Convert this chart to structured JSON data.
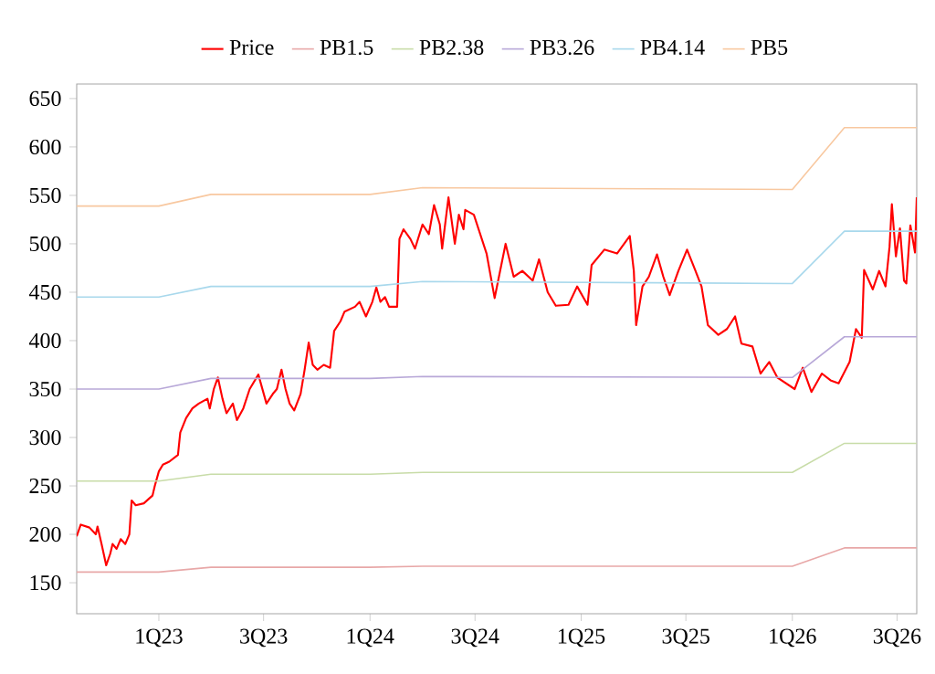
{
  "chart_data": {
    "type": "line",
    "legend": "top",
    "xlim": [
      "2022-08-12",
      "2026-08-04"
    ],
    "ylim": [
      118,
      665
    ],
    "xticks": [
      {
        "value": "2023-01-01",
        "label": "1Q23"
      },
      {
        "value": "2023-07-01",
        "label": "3Q23"
      },
      {
        "value": "2024-01-01",
        "label": "1Q24"
      },
      {
        "value": "2024-07-01",
        "label": "3Q24"
      },
      {
        "value": "2025-01-01",
        "label": "1Q25"
      },
      {
        "value": "2025-07-01",
        "label": "3Q25"
      },
      {
        "value": "2026-01-01",
        "label": "1Q26"
      },
      {
        "value": "2026-07-01",
        "label": "3Q26"
      }
    ],
    "yticks": [
      150,
      200,
      250,
      300,
      350,
      400,
      450,
      500,
      550,
      600,
      650
    ],
    "series": [
      {
        "name": "Price",
        "color": "#ff0000",
        "x": [
          "2022-08-12",
          "2022-08-19",
          "2022-09-03",
          "2022-09-14",
          "2022-09-17",
          "2022-09-24",
          "2022-10-02",
          "2022-10-09",
          "2022-10-13",
          "2022-10-20",
          "2022-10-27",
          "2022-11-04",
          "2022-11-11",
          "2022-11-15",
          "2022-11-22",
          "2022-12-06",
          "2022-12-21",
          "2022-12-25",
          "2023-01-01",
          "2023-01-08",
          "2023-01-19",
          "2023-02-03",
          "2023-02-07",
          "2023-02-17",
          "2023-02-28",
          "2023-03-11",
          "2023-03-26",
          "2023-03-30",
          "2023-04-06",
          "2023-04-13",
          "2023-04-21",
          "2023-04-28",
          "2023-05-09",
          "2023-05-16",
          "2023-05-27",
          "2023-06-07",
          "2023-06-22",
          "2023-06-29",
          "2023-07-06",
          "2023-07-17",
          "2023-07-24",
          "2023-08-01",
          "2023-08-08",
          "2023-08-15",
          "2023-08-23",
          "2023-09-03",
          "2023-09-10",
          "2023-09-17",
          "2023-09-24",
          "2023-10-02",
          "2023-10-13",
          "2023-10-24",
          "2023-10-31",
          "2023-11-11",
          "2023-11-18",
          "2023-12-06",
          "2023-12-14",
          "2023-12-25",
          "2024-01-05",
          "2024-01-12",
          "2024-01-19",
          "2024-01-27",
          "2024-02-03",
          "2024-02-17",
          "2024-02-21",
          "2024-02-28",
          "2024-03-11",
          "2024-03-19",
          "2024-04-01",
          "2024-04-12",
          "2024-04-21",
          "2024-05-01",
          "2024-05-05",
          "2024-05-16",
          "2024-05-27",
          "2024-06-03",
          "2024-06-11",
          "2024-06-14",
          "2024-06-29",
          "2024-07-21",
          "2024-08-04",
          "2024-08-23",
          "2024-09-06",
          "2024-09-21",
          "2024-10-09",
          "2024-10-20",
          "2024-11-04",
          "2024-11-18",
          "2024-12-10",
          "2024-12-25",
          "2025-01-12",
          "2025-01-19",
          "2025-02-10",
          "2025-03-04",
          "2025-03-26",
          "2025-04-02",
          "2025-04-06",
          "2025-04-17",
          "2025-04-28",
          "2025-05-12",
          "2025-05-23",
          "2025-06-03",
          "2025-06-18",
          "2025-07-03",
          "2025-07-17",
          "2025-07-28",
          "2025-08-08",
          "2025-08-26",
          "2025-09-10",
          "2025-09-24",
          "2025-10-05",
          "2025-10-24",
          "2025-11-07",
          "2025-11-22",
          "2025-12-06",
          "2026-01-05",
          "2026-01-19",
          "2026-02-03",
          "2026-02-21",
          "2026-03-08",
          "2026-03-22",
          "2026-04-10",
          "2026-04-21",
          "2026-05-01",
          "2026-05-05",
          "2026-05-20",
          "2026-05-31",
          "2026-06-11",
          "2026-06-18",
          "2026-06-22",
          "2026-06-29",
          "2026-07-06",
          "2026-07-13",
          "2026-07-17",
          "2026-07-24",
          "2026-08-01",
          "2026-08-04"
        ],
        "values": [
          198,
          210,
          207,
          200,
          208,
          190,
          168,
          180,
          190,
          185,
          195,
          190,
          200,
          235,
          230,
          232,
          240,
          250,
          265,
          272,
          275,
          282,
          305,
          320,
          330,
          335,
          340,
          330,
          350,
          362,
          340,
          325,
          335,
          318,
          330,
          350,
          365,
          350,
          335,
          345,
          350,
          370,
          350,
          335,
          328,
          345,
          370,
          398,
          375,
          370,
          375,
          372,
          410,
          420,
          430,
          435,
          440,
          425,
          440,
          455,
          440,
          445,
          435,
          435,
          505,
          515,
          505,
          495,
          520,
          510,
          540,
          520,
          495,
          548,
          500,
          530,
          515,
          535,
          530,
          490,
          444,
          500,
          466,
          472,
          462,
          484,
          450,
          436,
          437,
          456,
          437,
          478,
          494,
          490,
          508,
          472,
          416,
          456,
          466,
          489,
          466,
          447,
          472,
          494,
          473,
          456,
          416,
          406,
          412,
          425,
          397,
          394,
          366,
          378,
          362,
          350,
          372,
          347,
          366,
          359,
          356,
          378,
          412,
          403,
          473,
          453,
          472,
          456,
          497,
          541,
          487,
          516,
          462,
          459,
          519,
          491,
          548
        ]
      },
      {
        "name": "PB1.5",
        "color": "#e8a8a8",
        "x": [
          "2022-08-12",
          "2023-01-01",
          "2023-04-01",
          "2024-01-01",
          "2024-04-01",
          "2026-01-01",
          "2026-04-01",
          "2026-08-04"
        ],
        "values": [
          161,
          161,
          166,
          166,
          167,
          167,
          186,
          186
        ]
      },
      {
        "name": "PB2.38",
        "color": "#c8dca8",
        "x": [
          "2022-08-12",
          "2023-01-01",
          "2023-04-01",
          "2024-01-01",
          "2024-04-01",
          "2026-01-01",
          "2026-04-01",
          "2026-08-04"
        ],
        "values": [
          255,
          255,
          262,
          262,
          264,
          264,
          294,
          294
        ]
      },
      {
        "name": "PB3.26",
        "color": "#b8a8d8",
        "x": [
          "2022-08-12",
          "2023-01-01",
          "2023-04-01",
          "2024-01-01",
          "2024-04-01",
          "2026-01-01",
          "2026-04-01",
          "2026-08-04"
        ],
        "values": [
          350,
          350,
          361,
          361,
          363,
          362,
          404,
          404
        ]
      },
      {
        "name": "PB4.14",
        "color": "#a8d8ec",
        "x": [
          "2022-08-12",
          "2023-01-01",
          "2023-04-01",
          "2024-01-01",
          "2024-04-01",
          "2026-01-01",
          "2026-04-01",
          "2026-08-04"
        ],
        "values": [
          445,
          445,
          456,
          456,
          461,
          459,
          513,
          513
        ]
      },
      {
        "name": "PB5",
        "color": "#f8c8a0",
        "x": [
          "2022-08-12",
          "2023-01-01",
          "2023-04-01",
          "2024-01-01",
          "2024-04-01",
          "2026-01-01",
          "2026-04-01",
          "2026-08-04"
        ],
        "values": [
          539,
          539,
          551,
          551,
          558,
          556,
          620,
          620
        ]
      }
    ]
  }
}
